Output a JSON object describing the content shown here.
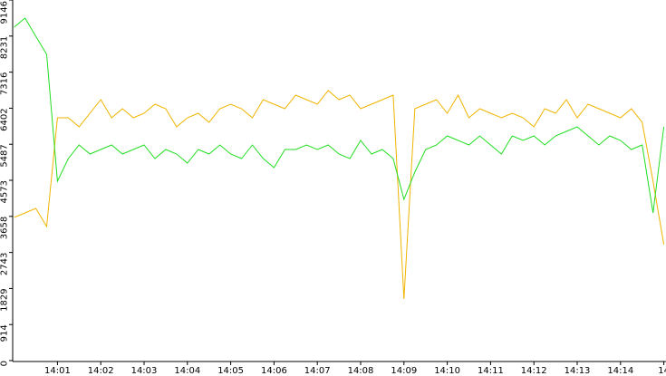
{
  "chart_data": {
    "type": "line",
    "x": [
      0,
      0.25,
      0.5,
      0.75,
      1,
      1.25,
      1.5,
      1.75,
      2,
      2.25,
      2.5,
      2.75,
      3,
      3.25,
      3.5,
      3.75,
      4,
      4.25,
      4.5,
      4.75,
      5,
      5.25,
      5.5,
      5.75,
      6,
      6.25,
      6.5,
      6.75,
      7,
      7.25,
      7.5,
      7.75,
      8,
      8.25,
      8.5,
      8.75,
      9,
      9.25,
      9.5,
      9.75,
      10,
      10.25,
      10.5,
      10.75,
      11,
      11.25,
      11.5,
      11.75,
      12,
      12.25,
      12.5,
      12.75,
      13,
      13.25,
      13.5,
      13.75,
      14,
      14.25,
      14.5,
      14.75,
      15
    ],
    "series": [
      {
        "color": "#f0b400",
        "values": [
          3631,
          3746,
          3861,
          3401,
          6159,
          6159,
          5929,
          6274,
          6618,
          6159,
          6388,
          6159,
          6274,
          6503,
          6388,
          5929,
          6159,
          6274,
          6044,
          6388,
          6503,
          6388,
          6159,
          6618,
          6503,
          6388,
          6733,
          6618,
          6503,
          6848,
          6618,
          6733,
          6388,
          6503,
          6618,
          6733,
          1563,
          6388,
          6503,
          6618,
          6274,
          6733,
          6159,
          6388,
          6274,
          6159,
          6274,
          6159,
          5929,
          6388,
          6274,
          6618,
          6159,
          6503,
          6388,
          6274,
          6159,
          6388,
          6044,
          4550,
          2941
        ]
      },
      {
        "color": "#22dd22",
        "values": [
          8457,
          8686,
          8227,
          7767,
          4550,
          5125,
          5469,
          5239,
          5354,
          5469,
          5239,
          5354,
          5469,
          5125,
          5354,
          5239,
          5010,
          5354,
          5239,
          5469,
          5239,
          5125,
          5469,
          5125,
          4895,
          5354,
          5354,
          5469,
          5354,
          5469,
          5239,
          5125,
          5584,
          5239,
          5354,
          5125,
          4090,
          4780,
          5354,
          5469,
          5699,
          5584,
          5469,
          5699,
          5469,
          5239,
          5699,
          5584,
          5699,
          5469,
          5699,
          5814,
          5929,
          5699,
          5469,
          5699,
          5584,
          5354,
          5469,
          3746,
          5929
        ]
      }
    ],
    "xlim": [
      0,
      15.05
    ],
    "xticks": [
      {
        "value": 1,
        "label": "14:01"
      },
      {
        "value": 2,
        "label": "14:02"
      },
      {
        "value": 3,
        "label": "14:03"
      },
      {
        "value": 4,
        "label": "14:04"
      },
      {
        "value": 5,
        "label": "14:05"
      },
      {
        "value": 6,
        "label": "14:06"
      },
      {
        "value": 7,
        "label": "14:07"
      },
      {
        "value": 8,
        "label": "14:08"
      },
      {
        "value": 9,
        "label": "14:09"
      },
      {
        "value": 10,
        "label": "14:10"
      },
      {
        "value": 11,
        "label": "14:11"
      },
      {
        "value": 12,
        "label": "14:12"
      },
      {
        "value": 13,
        "label": "14:13"
      },
      {
        "value": 14,
        "label": "14:14"
      },
      {
        "value": 15,
        "label": "14"
      }
    ],
    "ylim": [
      0,
      9146
    ],
    "yticks": [
      0,
      914,
      1829,
      2743,
      3658,
      4573,
      5487,
      6402,
      7316,
      8231,
      9146
    ]
  }
}
